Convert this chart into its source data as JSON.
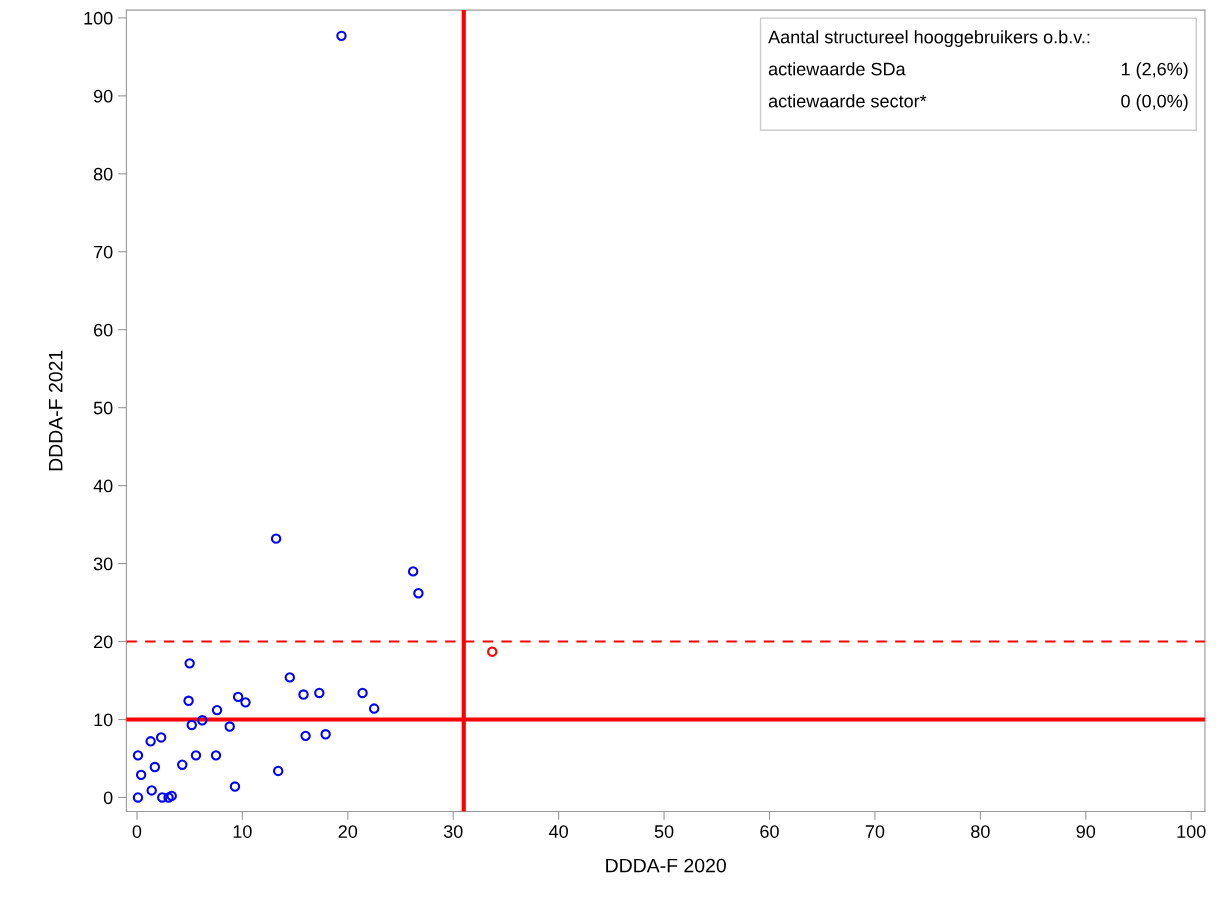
{
  "chart_data": {
    "type": "scatter",
    "xlabel": "DDDA-F 2020",
    "ylabel": "DDDA-F 2021",
    "xlim": [
      -1,
      101.3
    ],
    "ylim": [
      -1.8,
      101
    ],
    "xticks": [
      0,
      10,
      20,
      30,
      40,
      50,
      60,
      70,
      80,
      90,
      100
    ],
    "yticks": [
      0,
      10,
      20,
      30,
      40,
      50,
      60,
      70,
      80,
      90,
      100
    ],
    "grid": false,
    "marker": "circle",
    "series": [
      {
        "color": "#0000ff",
        "x": [
          19.4,
          13.2,
          26.2,
          26.7,
          5.0,
          4.9,
          14.5,
          15.8,
          17.3,
          21.4,
          22.5,
          9.6,
          10.3,
          7.6,
          6.2,
          5.2,
          8.8,
          16.0,
          17.9,
          2.3,
          1.3,
          0.1,
          5.6,
          7.5,
          1.7,
          4.3,
          0.4,
          13.4,
          1.4,
          9.3,
          0.1,
          2.4,
          3.0,
          3.3
        ],
        "values": [
          97.7,
          33.2,
          29.0,
          26.2,
          17.2,
          12.4,
          15.4,
          13.2,
          13.4,
          13.4,
          11.4,
          12.9,
          12.2,
          11.2,
          9.9,
          9.3,
          9.1,
          7.9,
          8.1,
          7.7,
          7.2,
          5.4,
          5.4,
          5.4,
          3.9,
          4.2,
          2.9,
          3.4,
          0.9,
          1.4,
          0,
          0,
          0,
          0.2
        ]
      },
      {
        "color": "#ff0000",
        "x": [
          33.7
        ],
        "values": [
          18.7
        ]
      }
    ],
    "ref_lines": [
      {
        "axis": "x",
        "value": 31,
        "color": "#ff0000",
        "line_style": "solid"
      },
      {
        "axis": "y",
        "value": 10,
        "color": "#ff0000",
        "line_style": "solid"
      },
      {
        "axis": "y",
        "value": 20,
        "color": "#ff0000",
        "line_style": "dashed"
      }
    ],
    "annotations": [
      "Aantal structureel hooggebruikers o.b.v.:",
      "actiewaarde SDa",
      "1 (2,6%)",
      "actiewaarde sector*",
      "0 (0,0%)"
    ]
  }
}
